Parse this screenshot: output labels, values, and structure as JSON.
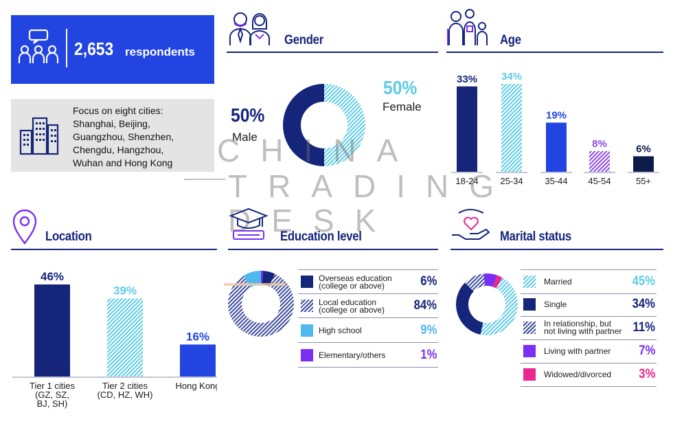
{
  "respondents": {
    "count": "2,653",
    "label": "respondents"
  },
  "cities": {
    "text": [
      "Focus on eight cities:",
      "Shanghai, Beijing,",
      "Guangzhou, Shenzhen,",
      "Chengdu, Hangzhou,",
      "Wuhan and Hong Kong"
    ]
  },
  "watermark": {
    "line1": "CHINA",
    "line2": "TRADING",
    "line3": "DESK"
  },
  "colors": {
    "navy": "#14257a",
    "royal": "#2244e0",
    "cyan": "#5ecbe6",
    "purple": "#7b2ff2",
    "magenta": "#e8288f",
    "dark": "#0d1b4a"
  },
  "chart_data": [
    {
      "type": "pie",
      "title": "Gender",
      "categories": [
        "Male",
        "Female"
      ],
      "values": [
        50,
        50
      ],
      "labels": [
        "50%",
        "50%"
      ]
    },
    {
      "type": "bar",
      "title": "Age",
      "categories": [
        "18-24",
        "25-34",
        "35-44",
        "45-54",
        "55+"
      ],
      "values": [
        33,
        34,
        19,
        8,
        6
      ],
      "labels": [
        "33%",
        "34%",
        "19%",
        "8%",
        "6%"
      ],
      "ylim": [
        0,
        34
      ]
    },
    {
      "type": "bar",
      "title": "Location",
      "categories": [
        [
          "Tier 1 cities",
          "(GZ, SZ,",
          "BJ, SH)"
        ],
        [
          "Tier 2 cities",
          "(CD, HZ, WH)"
        ],
        [
          "Hong Kong"
        ]
      ],
      "values": [
        46,
        39,
        16
      ],
      "labels": [
        "46%",
        "39%",
        "16%"
      ],
      "ylim": [
        0,
        46
      ]
    },
    {
      "type": "pie",
      "title": "Education level",
      "categories": [
        [
          "Overseas education",
          "(college or above)"
        ],
        [
          "Local education",
          "(college or above)"
        ],
        [
          "High school"
        ],
        [
          "Elementary/others"
        ]
      ],
      "values": [
        6,
        84,
        9,
        1
      ],
      "labels": [
        "6%",
        "84%",
        "9%",
        "1%"
      ]
    },
    {
      "type": "pie",
      "title": "Marital status",
      "categories": [
        [
          "Married"
        ],
        [
          "Single"
        ],
        [
          "In relationship, but",
          "not living with partner"
        ],
        [
          "Living with partner"
        ],
        [
          "Widowed/divorced"
        ]
      ],
      "values": [
        45,
        34,
        11,
        7,
        3
      ],
      "labels": [
        "45%",
        "34%",
        "11%",
        "7%",
        "3%"
      ]
    }
  ]
}
